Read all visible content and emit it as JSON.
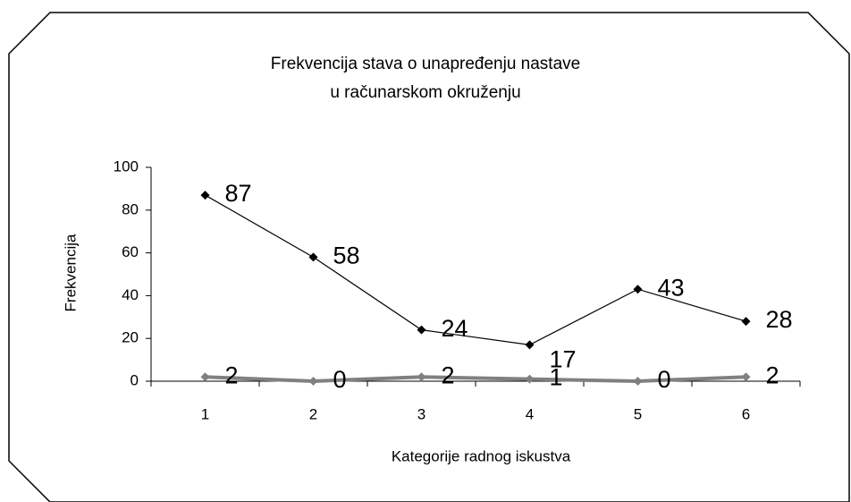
{
  "chart_data": {
    "type": "line",
    "title": [
      "Frekvencija stava o unapređenju nastave",
      "u računarskom okruženju"
    ],
    "x_label": "Kategorije radnog iskustva",
    "y_label": "Frekvencija",
    "categories": [
      "1",
      "2",
      "3",
      "4",
      "5",
      "6"
    ],
    "series": [
      {
        "color": "#000000",
        "values": [
          87,
          58,
          24,
          17,
          43,
          28
        ]
      },
      {
        "color": "#808080",
        "values": [
          2,
          0,
          2,
          1,
          0,
          2
        ]
      }
    ],
    "ylim": [
      0,
      100
    ],
    "yticks": [
      0,
      20,
      40,
      60,
      80,
      100
    ],
    "grid": false
  }
}
